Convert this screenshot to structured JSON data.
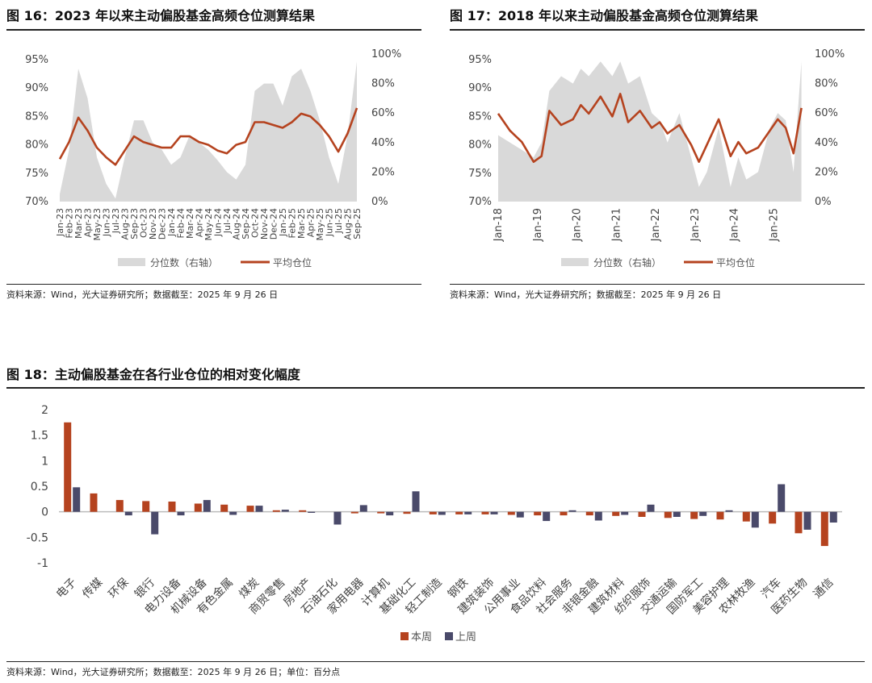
{
  "fig16": {
    "title": "图 16：2023 年以来主动偏股基金高频仓位测算结果",
    "source": "资料来源：Wind，光大证券研究所；数据截至：2025 年 9 月 26 日",
    "legend_area": "分位数（右轴）",
    "legend_line": "平均仓位"
  },
  "fig17": {
    "title": "图 17：2018 年以来主动偏股基金高频仓位测算结果",
    "source": "资料来源：Wind，光大证券研究所；数据截至：2025 年 9 月 26 日",
    "legend_area": "分位数（右轴）",
    "legend_line": "平均仓位"
  },
  "fig18": {
    "title": "图 18：主动偏股基金在各行业仓位的相对变化幅度",
    "source": "资料来源：Wind，光大证券研究所；数据截至：2025 年 9 月 26 日；单位：百分点",
    "legend_this": "本周",
    "legend_last": "上周"
  },
  "colors": {
    "line": "#b5431f",
    "area": "#d9d9d9",
    "bar_this": "#b5431f",
    "bar_last": "#4a4a6a"
  },
  "chart_data": [
    {
      "id": "fig16",
      "type": "area",
      "categories": [
        "Jan-23",
        "Feb-23",
        "Mar-23",
        "Apr-23",
        "May-23",
        "Jun-23",
        "Jul-23",
        "Aug-23",
        "Sep-23",
        "Oct-23",
        "Nov-23",
        "Dec-23",
        "Jan-24",
        "Feb-24",
        "Mar-24",
        "Apr-24",
        "May-24",
        "Jun-24",
        "Jul-24",
        "Aug-24",
        "Sep-24",
        "Oct-24",
        "Nov-24",
        "Dec-24",
        "Jan-25",
        "Feb-25",
        "Mar-25",
        "Apr-25",
        "May-25",
        "Jun-25",
        "Jul-25",
        "Aug-25",
        "Sep-25"
      ],
      "y_left": {
        "ticks": [
          "70%",
          "75%",
          "80%",
          "85%",
          "90%",
          "95%"
        ],
        "range": [
          70,
          96
        ]
      },
      "y_right": {
        "ticks": [
          "0%",
          "20%",
          "40%",
          "60%",
          "80%",
          "100%"
        ],
        "range": [
          0,
          100
        ]
      },
      "series": [
        {
          "name": "分位数（右轴）",
          "axis": "right",
          "kind": "area",
          "values": [
            5,
            35,
            90,
            70,
            30,
            12,
            2,
            30,
            55,
            55,
            40,
            35,
            25,
            30,
            45,
            40,
            35,
            28,
            20,
            15,
            25,
            75,
            80,
            80,
            65,
            85,
            90,
            75,
            55,
            30,
            12,
            45,
            95
          ]
        },
        {
          "name": "平均仓位",
          "axis": "left",
          "kind": "line",
          "values": [
            77.5,
            80.5,
            84.8,
            82.5,
            79.5,
            77.8,
            76.5,
            79.0,
            81.5,
            80.5,
            80.0,
            79.5,
            79.5,
            81.5,
            81.5,
            80.5,
            80.0,
            79.0,
            78.5,
            80.0,
            80.5,
            84.0,
            84.0,
            83.5,
            83.0,
            84.0,
            85.5,
            85.0,
            83.5,
            81.5,
            78.8,
            82.0,
            86.5
          ]
        }
      ]
    },
    {
      "id": "fig17",
      "type": "area",
      "categories": [
        "Jan-18",
        "Jan-19",
        "Jan-20",
        "Jan-21",
        "Jan-22",
        "Jan-23",
        "Jan-24",
        "Jan-25"
      ],
      "y_left": {
        "ticks": [
          "70%",
          "75%",
          "80%",
          "85%",
          "90%",
          "95%"
        ],
        "range": [
          70,
          96
        ]
      },
      "y_right": {
        "ticks": [
          "0%",
          "20%",
          "40%",
          "60%",
          "80%",
          "100%"
        ],
        "range": [
          0,
          100
        ]
      },
      "series": [
        {
          "name": "分位数（右轴）",
          "axis": "right",
          "kind": "area",
          "x": [
            2018.0,
            2018.3,
            2018.6,
            2018.9,
            2019.1,
            2019.3,
            2019.6,
            2019.9,
            2020.1,
            2020.3,
            2020.6,
            2020.9,
            2021.1,
            2021.3,
            2021.6,
            2021.9,
            2022.1,
            2022.3,
            2022.6,
            2022.9,
            2023.1,
            2023.3,
            2023.6,
            2023.9,
            2024.1,
            2024.3,
            2024.6,
            2024.9,
            2025.1,
            2025.3,
            2025.5,
            2025.7
          ],
          "values": [
            45,
            40,
            35,
            30,
            40,
            75,
            85,
            80,
            90,
            85,
            95,
            85,
            95,
            80,
            85,
            60,
            55,
            40,
            60,
            30,
            10,
            20,
            50,
            10,
            30,
            15,
            20,
            50,
            60,
            55,
            20,
            95
          ]
        },
        {
          "name": "平均仓位",
          "axis": "left",
          "kind": "line",
          "x": [
            2018.0,
            2018.3,
            2018.6,
            2018.9,
            2019.1,
            2019.3,
            2019.6,
            2019.9,
            2020.1,
            2020.3,
            2020.6,
            2020.9,
            2021.1,
            2021.3,
            2021.6,
            2021.9,
            2022.1,
            2022.3,
            2022.6,
            2022.9,
            2023.1,
            2023.3,
            2023.6,
            2023.9,
            2024.1,
            2024.3,
            2024.6,
            2024.9,
            2025.1,
            2025.3,
            2025.5,
            2025.7
          ],
          "values": [
            85.5,
            82.5,
            80.5,
            77.0,
            78.0,
            86.0,
            83.5,
            84.5,
            87.0,
            85.5,
            88.5,
            85.0,
            89.0,
            84.0,
            86.0,
            83.0,
            84.0,
            82.0,
            83.5,
            80.0,
            77.0,
            80.0,
            84.5,
            78.0,
            80.5,
            78.5,
            79.5,
            82.5,
            84.5,
            83.0,
            78.5,
            86.5
          ]
        }
      ]
    },
    {
      "id": "fig18",
      "type": "bar",
      "y_ticks": [
        "2",
        "1.5",
        "1",
        "0.5",
        "0",
        "-0.5",
        "-1"
      ],
      "ylim": [
        -1,
        2
      ],
      "categories": [
        "电子",
        "传媒",
        "环保",
        "银行",
        "电力设备",
        "机械设备",
        "有色金属",
        "煤炭",
        "商贸零售",
        "房地产",
        "石油石化",
        "家用电器",
        "计算机",
        "基础化工",
        "轻工制造",
        "钢铁",
        "建筑装饰",
        "公用事业",
        "食品饮料",
        "社会服务",
        "非银金融",
        "建筑材料",
        "纺织服饰",
        "交通运输",
        "国防军工",
        "美容护理",
        "农林牧渔",
        "汽车",
        "医药生物",
        "通信"
      ],
      "series": [
        {
          "name": "本周",
          "values": [
            1.75,
            0.36,
            0.23,
            0.21,
            0.2,
            0.16,
            0.14,
            0.12,
            0.03,
            0.03,
            0.0,
            -0.03,
            -0.03,
            -0.04,
            -0.05,
            -0.05,
            -0.05,
            -0.06,
            -0.07,
            -0.07,
            -0.07,
            -0.08,
            -0.1,
            -0.12,
            -0.14,
            -0.15,
            -0.19,
            -0.23,
            -0.42,
            -0.67
          ]
        },
        {
          "name": "上周",
          "values": [
            0.48,
            0.0,
            -0.07,
            -0.44,
            -0.07,
            0.23,
            -0.06,
            0.12,
            0.04,
            -0.02,
            -0.25,
            0.13,
            -0.07,
            0.4,
            -0.06,
            -0.05,
            -0.05,
            -0.11,
            -0.18,
            0.03,
            -0.17,
            -0.06,
            0.14,
            -0.1,
            -0.08,
            0.03,
            -0.31,
            0.54,
            -0.35,
            -0.21
          ]
        }
      ]
    }
  ]
}
